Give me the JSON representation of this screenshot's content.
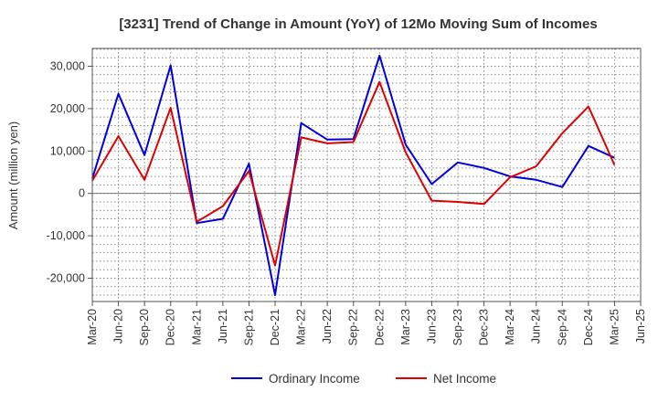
{
  "chart_data": {
    "type": "line",
    "title": "[3231]  Trend of Change in Amount (YoY) of 12Mo Moving Sum of Incomes",
    "xlabel": "",
    "ylabel": "Amount (million yen)",
    "ylim": [
      -25500,
      34200
    ],
    "yticks": [
      -20000,
      -10000,
      0,
      10000,
      20000,
      30000
    ],
    "ytick_labels": [
      "-20,000",
      "-10,000",
      "0",
      "10,000",
      "20,000",
      "30,000"
    ],
    "grid": true,
    "legend_position": "bottom",
    "categories": [
      "Mar-20",
      "Jun-20",
      "Sep-20",
      "Dec-20",
      "Mar-21",
      "Jun-21",
      "Sep-21",
      "Dec-21",
      "Mar-22",
      "Jun-22",
      "Sep-22",
      "Dec-22",
      "Mar-23",
      "Jun-23",
      "Sep-23",
      "Dec-23",
      "Mar-24",
      "Jun-24",
      "Sep-24",
      "Dec-24",
      "Mar-25",
      "Jun-25"
    ],
    "series": [
      {
        "name": "Ordinary Income",
        "color": "#0000dd",
        "values": [
          3500,
          23500,
          9000,
          30200,
          -7000,
          -6000,
          7000,
          -24000,
          16600,
          12700,
          12800,
          32500,
          11500,
          2200,
          7300,
          6000,
          4000,
          3200,
          1500,
          11200,
          8400,
          null
        ]
      },
      {
        "name": "Net Income",
        "color": "#dd0000",
        "values": [
          3000,
          13500,
          3200,
          20200,
          -6700,
          -3000,
          5300,
          -17000,
          13200,
          11800,
          12100,
          26300,
          9700,
          -1700,
          -2000,
          -2500,
          3800,
          6400,
          14200,
          20500,
          6700,
          null
        ]
      }
    ]
  }
}
